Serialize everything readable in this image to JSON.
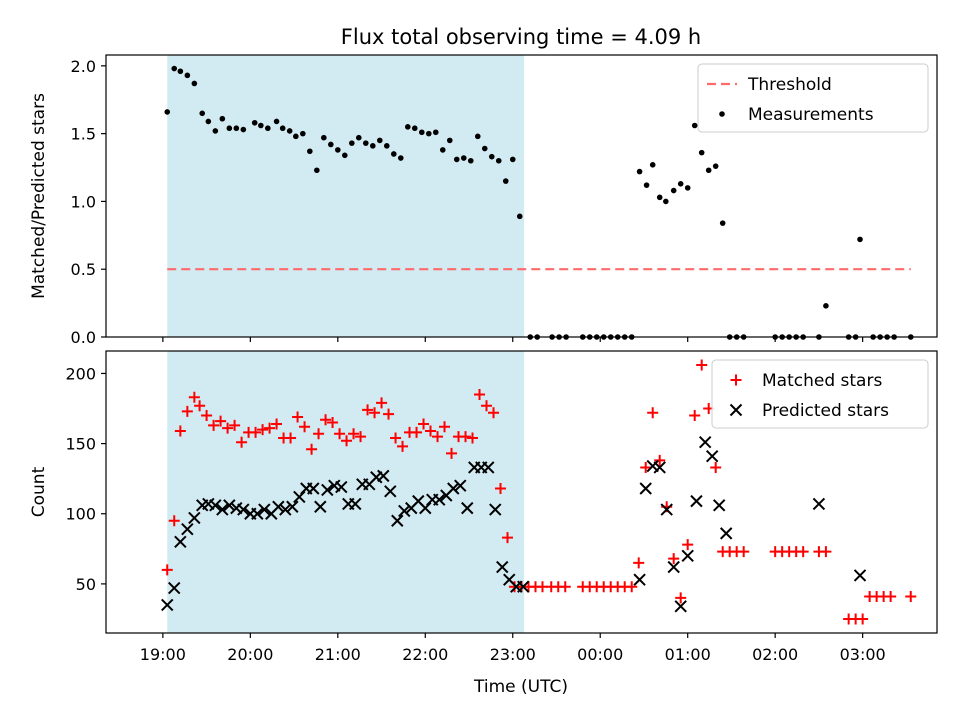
{
  "figure": {
    "title": "Flux total observing time = 4.09 h",
    "xlabel": "Time (UTC)",
    "x_ticks": [
      "19:00",
      "20:00",
      "21:00",
      "22:00",
      "23:00",
      "00:00",
      "01:00",
      "02:00",
      "03:00"
    ]
  },
  "chart_data": [
    {
      "type": "scatter",
      "name": "ratio-panel",
      "ylabel": "Matched/Predicted stars",
      "xlim": [
        18.35,
        27.85
      ],
      "ylim": [
        0,
        2.08
      ],
      "y_ticks": [
        0.0,
        0.5,
        1.0,
        1.5,
        2.0
      ],
      "y_tick_labels": [
        "0.0",
        "0.5",
        "1.0",
        "1.5",
        "2.0"
      ],
      "shaded_span": [
        19.05,
        23.13
      ],
      "shade_color": "#add8e6",
      "threshold": {
        "name": "Threshold",
        "value": 0.5,
        "x_range": [
          19.05,
          27.55
        ],
        "color": "#ff6b6b"
      },
      "legend": [
        "Threshold",
        "Measurements"
      ],
      "legend_position": "upper right",
      "series": [
        {
          "name": "Measurements",
          "color": "#000000",
          "marker": "dot",
          "x": [
            19.05,
            19.13,
            19.2,
            19.28,
            19.36,
            19.45,
            19.52,
            19.6,
            19.68,
            19.76,
            19.84,
            19.92,
            20.05,
            20.12,
            20.2,
            20.3,
            20.37,
            20.45,
            20.52,
            20.6,
            20.68,
            20.76,
            20.84,
            20.92,
            21.0,
            21.08,
            21.16,
            21.24,
            21.32,
            21.4,
            21.48,
            21.56,
            21.64,
            21.72,
            21.8,
            21.88,
            21.96,
            22.04,
            22.12,
            22.2,
            22.28,
            22.36,
            22.44,
            22.52,
            22.6,
            22.68,
            22.76,
            22.84,
            22.92,
            23.0,
            23.08,
            23.2,
            23.28,
            23.45,
            23.53,
            23.61,
            23.8,
            23.88,
            23.96,
            24.04,
            24.12,
            24.2,
            24.28,
            24.36,
            24.45,
            24.53,
            24.6,
            24.68,
            24.75,
            24.84,
            24.92,
            25.0,
            25.08,
            25.16,
            25.24,
            25.32,
            25.4,
            25.48,
            25.56,
            25.64,
            26.0,
            26.08,
            26.16,
            26.24,
            26.32,
            26.5,
            26.58,
            26.84,
            26.92,
            26.97,
            27.12,
            27.2,
            27.28,
            27.36,
            27.55
          ],
          "y": [
            1.66,
            1.98,
            1.96,
            1.93,
            1.87,
            1.65,
            1.59,
            1.52,
            1.61,
            1.54,
            1.54,
            1.53,
            1.58,
            1.56,
            1.54,
            1.59,
            1.54,
            1.52,
            1.48,
            1.5,
            1.37,
            1.23,
            1.47,
            1.42,
            1.38,
            1.34,
            1.43,
            1.47,
            1.43,
            1.41,
            1.45,
            1.41,
            1.35,
            1.32,
            1.55,
            1.54,
            1.51,
            1.5,
            1.51,
            1.38,
            1.45,
            1.31,
            1.32,
            1.3,
            1.48,
            1.39,
            1.33,
            1.3,
            1.15,
            1.31,
            0.89,
            0.0,
            0.0,
            0.0,
            0.0,
            0.0,
            0.0,
            0.0,
            0.0,
            0.0,
            0.0,
            0.0,
            0.0,
            0.0,
            1.22,
            1.12,
            1.27,
            1.03,
            1.0,
            1.08,
            1.13,
            1.1,
            1.56,
            1.36,
            1.23,
            1.26,
            0.84,
            0.0,
            0.0,
            0.0,
            0.0,
            0.0,
            0.0,
            0.0,
            0.0,
            0.0,
            0.23,
            0.0,
            0.0,
            0.72,
            0.0,
            0.0,
            0.0,
            0.0,
            0.0
          ]
        }
      ]
    },
    {
      "type": "scatter",
      "name": "count-panel",
      "ylabel": "Count",
      "xlim": [
        18.35,
        27.85
      ],
      "ylim": [
        15,
        216
      ],
      "y_ticks": [
        50,
        100,
        150,
        200
      ],
      "y_tick_labels": [
        "50",
        "100",
        "150",
        "200"
      ],
      "shaded_span": [
        19.05,
        23.13
      ],
      "shade_color": "#add8e6",
      "legend": [
        "Matched stars",
        "Predicted stars"
      ],
      "legend_position": "upper right",
      "series": [
        {
          "name": "Matched stars",
          "color": "#ff0000",
          "marker": "plus",
          "x": [
            19.05,
            19.13,
            19.2,
            19.28,
            19.36,
            19.42,
            19.5,
            19.58,
            19.66,
            19.74,
            19.82,
            19.9,
            19.98,
            20.06,
            20.14,
            20.22,
            20.3,
            20.38,
            20.46,
            20.54,
            20.62,
            20.7,
            20.78,
            20.86,
            20.94,
            21.02,
            21.1,
            21.18,
            21.26,
            21.34,
            21.42,
            21.5,
            21.58,
            21.66,
            21.74,
            21.82,
            21.9,
            21.98,
            22.06,
            22.14,
            22.22,
            22.3,
            22.38,
            22.46,
            22.54,
            22.62,
            22.7,
            22.78,
            22.86,
            22.94,
            23.02,
            23.1,
            23.18,
            23.26,
            23.34,
            23.44,
            23.52,
            23.6,
            23.8,
            23.88,
            23.96,
            24.04,
            24.12,
            24.2,
            24.28,
            24.36,
            24.44,
            24.52,
            24.6,
            24.68,
            24.76,
            24.84,
            24.92,
            25.0,
            25.08,
            25.16,
            25.24,
            25.32,
            25.4,
            25.48,
            25.56,
            25.64,
            26.0,
            26.08,
            26.16,
            26.24,
            26.32,
            26.5,
            26.58,
            26.84,
            26.92,
            27.0,
            27.08,
            27.16,
            27.24,
            27.32,
            27.55
          ],
          "y": [
            60,
            95,
            159,
            173,
            183,
            177,
            170,
            163,
            166,
            161,
            163,
            151,
            158,
            158,
            160,
            161,
            164,
            154,
            154,
            169,
            162,
            146,
            157,
            167,
            165,
            157,
            152,
            157,
            155,
            174,
            172,
            179,
            171,
            154,
            148,
            158,
            158,
            164,
            159,
            155,
            162,
            143,
            155,
            155,
            154,
            185,
            177,
            172,
            118,
            83,
            48,
            48,
            48,
            48,
            48,
            48,
            48,
            48,
            48,
            48,
            48,
            48,
            48,
            48,
            48,
            48,
            65,
            133,
            172,
            138,
            105,
            68,
            40,
            78,
            170,
            206,
            175,
            133,
            73,
            73,
            73,
            73,
            73,
            73,
            73,
            73,
            73,
            73,
            73,
            25,
            25,
            25,
            41,
            41,
            41,
            41,
            41
          ]
        },
        {
          "name": "Predicted stars",
          "color": "#000000",
          "marker": "x",
          "x": [
            19.05,
            19.13,
            19.2,
            19.28,
            19.36,
            19.45,
            19.52,
            19.6,
            19.68,
            19.76,
            19.84,
            19.92,
            20.0,
            20.08,
            20.16,
            20.24,
            20.32,
            20.4,
            20.48,
            20.56,
            20.64,
            20.72,
            20.8,
            20.88,
            20.96,
            21.04,
            21.12,
            21.2,
            21.28,
            21.36,
            21.44,
            21.52,
            21.6,
            21.68,
            21.76,
            21.84,
            21.92,
            22.0,
            22.08,
            22.16,
            22.24,
            22.32,
            22.4,
            22.48,
            22.56,
            22.64,
            22.72,
            22.8,
            22.88,
            22.96,
            23.04,
            23.12,
            24.45,
            24.52,
            24.6,
            24.68,
            24.76,
            24.84,
            24.92,
            25.0,
            25.1,
            25.2,
            25.28,
            25.36,
            25.44,
            26.5,
            26.97
          ],
          "y": [
            35,
            47,
            80,
            89,
            97,
            106,
            107,
            106,
            103,
            106,
            104,
            103,
            100,
            100,
            103,
            100,
            105,
            103,
            105,
            112,
            118,
            118,
            105,
            117,
            120,
            119,
            107,
            107,
            121,
            121,
            126,
            127,
            116,
            95,
            102,
            104,
            109,
            104,
            110,
            110,
            113,
            118,
            120,
            104,
            133,
            133,
            133,
            103,
            62,
            53,
            48,
            48,
            53,
            118,
            134,
            133,
            103,
            62,
            34,
            70,
            109,
            151,
            141,
            106,
            86,
            107,
            56
          ]
        }
      ]
    }
  ]
}
